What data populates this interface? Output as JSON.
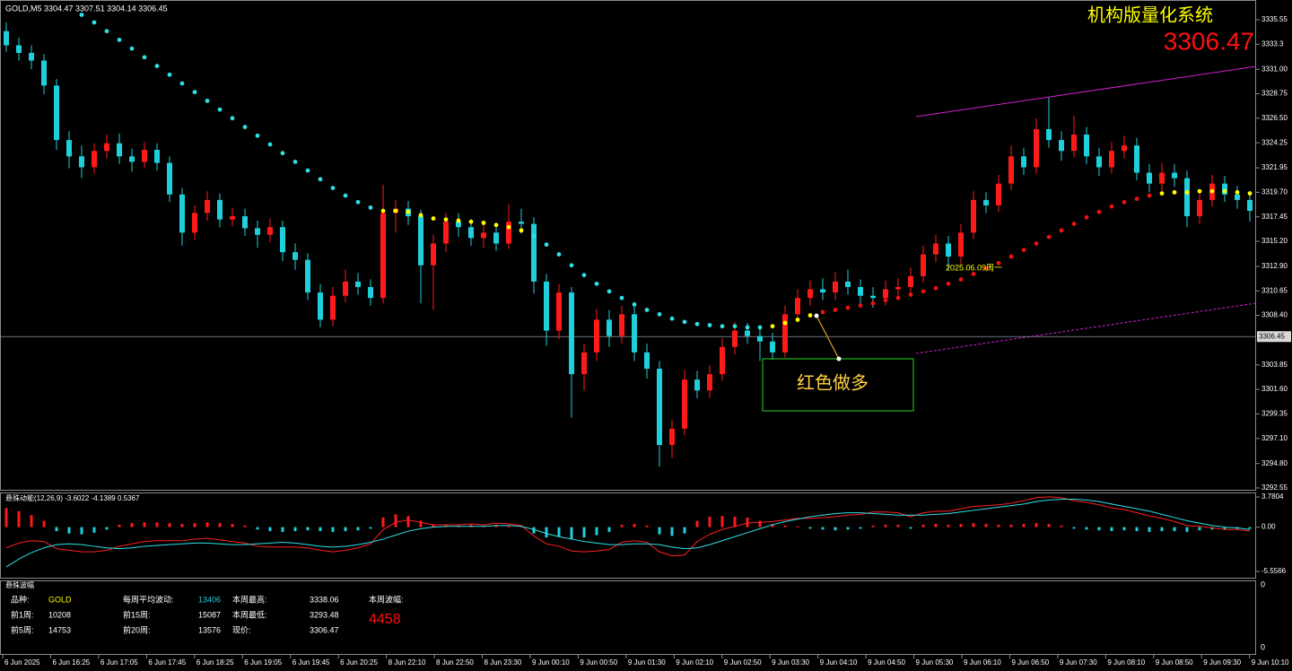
{
  "header": {
    "symbol_info": "GOLD,M5  3304.47 3307.51 3304.14 3306.45",
    "system_name": "机构版量化系统",
    "price": "3306.47"
  },
  "chart_data": {
    "type": "candlestick",
    "open": [
      3334.5,
      3333.2,
      3332.5,
      3331.8,
      3329.5,
      3324.5,
      3323.0,
      3322.0,
      3323.5,
      3324.2,
      3323.0,
      3322.5,
      3323.6,
      3322.4,
      3319.5,
      3316.0,
      3317.8,
      3319.0,
      3317.2,
      3317.5,
      3316.4,
      3315.8,
      3316.5,
      3314.2,
      3313.5,
      3310.5,
      3308.0,
      3310.2,
      3311.5,
      3311.0,
      3310.0,
      3317.8,
      3318.2,
      3317.5,
      3313.0,
      3315.0,
      3317.0,
      3316.5,
      3315.5,
      3316.0,
      3315.0,
      3317.0,
      3316.8,
      3311.5,
      3307.0,
      3310.5,
      3303.0,
      3305.0,
      3308.0,
      3306.5,
      3308.5,
      3305.0,
      3303.5,
      3296.5,
      3298.0,
      3302.5,
      3301.5,
      3303.0,
      3305.5,
      3307.0,
      3306.5,
      3306.0,
      3305.0,
      3308.5,
      3310.0,
      3310.8,
      3310.5,
      3311.5,
      3311.0,
      3310.2,
      3310.0,
      3310.8,
      3311.0,
      3312.0,
      3314.0,
      3315.0,
      3313.8,
      3316.0,
      3319.0,
      3318.5,
      3320.5,
      3323.0,
      3322.0,
      3325.5,
      3324.5,
      3323.5,
      3325.0,
      3323.0,
      3322.0,
      3323.5,
      3324.0,
      3321.5,
      3320.5,
      3321.5,
      3321.0,
      3317.5,
      3319.0,
      3320.5,
      3319.5,
      3319.0
    ],
    "high": [
      3335.3,
      3333.9,
      3333.2,
      3332.4,
      3330.1,
      3325.3,
      3324.0,
      3324.2,
      3325.0,
      3325.1,
      3323.7,
      3324.3,
      3324.2,
      3323.0,
      3320.1,
      3318.5,
      3319.8,
      3319.6,
      3318.3,
      3318.2,
      3317.1,
      3317.3,
      3317.1,
      3315.0,
      3314.1,
      3311.3,
      3311.0,
      3312.6,
      3312.3,
      3311.7,
      3320.4,
      3319.0,
      3318.9,
      3318.1,
      3315.8,
      3317.8,
      3317.8,
      3317.2,
      3316.8,
      3316.9,
      3318.6,
      3318.2,
      3317.4,
      3312.2,
      3311.3,
      3311.0,
      3305.8,
      3309.0,
      3308.9,
      3309.3,
      3309.2,
      3305.8,
      3304.2,
      3298.8,
      3303.4,
      3303.3,
      3303.8,
      3306.3,
      3307.8,
      3307.7,
      3307.2,
      3306.8,
      3309.3,
      3310.8,
      3311.6,
      3311.8,
      3312.4,
      3312.6,
      3311.7,
      3311.0,
      3311.6,
      3311.8,
      3312.8,
      3314.8,
      3315.8,
      3315.7,
      3316.8,
      3319.8,
      3319.7,
      3321.3,
      3324.0,
      3323.8,
      3326.5,
      3328.4,
      3325.3,
      3326.7,
      3325.7,
      3323.8,
      3324.3,
      3324.9,
      3324.7,
      3322.3,
      3322.4,
      3322.3,
      3321.7,
      3319.8,
      3321.3,
      3321.2,
      3320.3,
      3319.8
    ],
    "low": [
      3332.6,
      3331.8,
      3331.0,
      3328.7,
      3323.6,
      3321.9,
      3321.0,
      3321.4,
      3322.8,
      3322.3,
      3321.6,
      3321.9,
      3321.7,
      3318.8,
      3314.8,
      3315.3,
      3317.1,
      3316.5,
      3316.6,
      3315.7,
      3314.6,
      3315.1,
      3313.4,
      3312.6,
      3309.8,
      3307.3,
      3307.4,
      3309.6,
      3310.3,
      3309.3,
      3309.5,
      3316.0,
      3316.7,
      3309.5,
      3308.9,
      3314.2,
      3315.6,
      3314.8,
      3314.6,
      3314.3,
      3314.5,
      3315.9,
      3310.4,
      3305.6,
      3306.2,
      3299.0,
      3301.5,
      3304.2,
      3305.5,
      3305.8,
      3304.2,
      3302.6,
      3294.5,
      3295.3,
      3297.4,
      3300.8,
      3300.8,
      3302.4,
      3304.8,
      3305.8,
      3304.2,
      3304.3,
      3304.5,
      3307.9,
      3309.3,
      3309.8,
      3309.8,
      3310.3,
      3309.5,
      3309.1,
      3309.3,
      3310.1,
      3310.3,
      3311.4,
      3313.3,
      3312.6,
      3313.1,
      3315.4,
      3317.8,
      3317.9,
      3319.9,
      3321.3,
      3321.4,
      3323.8,
      3322.6,
      3322.9,
      3322.3,
      3321.2,
      3321.4,
      3322.8,
      3320.8,
      3319.7,
      3319.8,
      3320.2,
      3316.5,
      3316.8,
      3318.4,
      3318.8,
      3318.2,
      3317.0
    ],
    "close": [
      3333.2,
      3332.5,
      3331.8,
      3329.5,
      3324.5,
      3323.0,
      3322.0,
      3323.5,
      3324.2,
      3323.0,
      3322.5,
      3323.6,
      3322.4,
      3319.5,
      3316.0,
      3317.8,
      3319.0,
      3317.2,
      3317.5,
      3316.4,
      3315.8,
      3316.5,
      3314.2,
      3313.5,
      3310.5,
      3308.0,
      3310.2,
      3311.5,
      3311.0,
      3310.0,
      3317.8,
      3318.2,
      3317.5,
      3313.0,
      3315.0,
      3317.0,
      3316.5,
      3315.5,
      3316.0,
      3315.0,
      3317.0,
      3316.8,
      3311.5,
      3307.0,
      3310.5,
      3303.0,
      3305.0,
      3308.0,
      3306.5,
      3308.5,
      3305.0,
      3303.5,
      3296.5,
      3298.0,
      3302.5,
      3301.5,
      3303.0,
      3305.5,
      3307.0,
      3306.5,
      3306.0,
      3305.0,
      3308.5,
      3310.0,
      3310.8,
      3310.5,
      3311.5,
      3311.0,
      3310.2,
      3310.0,
      3310.8,
      3311.0,
      3312.0,
      3314.0,
      3315.0,
      3313.8,
      3316.0,
      3319.0,
      3318.5,
      3320.5,
      3323.0,
      3322.0,
      3325.5,
      3324.5,
      3323.5,
      3325.0,
      3323.0,
      3322.0,
      3323.5,
      3324.0,
      3321.5,
      3320.5,
      3321.5,
      3321.0,
      3317.5,
      3319.0,
      3320.5,
      3319.5,
      3319.0,
      3318.0
    ],
    "up_color": "#ff1a1a",
    "down_color": "#1fd0dc",
    "ma_series": [
      {
        "color": "#2ee0e6",
        "values": [
          null,
          null,
          null,
          null,
          null,
          null,
          3336.0,
          3335.3,
          3334.5,
          3333.7,
          3332.9,
          3332.1,
          3331.3,
          3330.5,
          3329.7,
          3328.9,
          3328.1,
          3327.3,
          3326.5,
          3325.7,
          3324.9,
          3324.1,
          3323.3,
          3322.5,
          3321.7,
          3320.9,
          3320.1,
          3319.4,
          3318.8,
          3318.3,
          null,
          null,
          null,
          null,
          null,
          null,
          null,
          null,
          null,
          null,
          null,
          null,
          3315.7,
          3314.9,
          3314.0,
          3313.0,
          3312.1,
          3311.3,
          3310.6,
          3310.0,
          3309.4,
          3308.9,
          3308.5,
          3308.1,
          3307.8,
          3307.6,
          3307.5,
          3307.4,
          3307.4,
          3307.3,
          3307.3,
          null,
          null,
          null,
          null,
          null,
          null,
          null,
          null,
          null,
          null,
          null,
          null,
          null,
          null,
          null,
          null,
          null,
          null,
          null,
          null,
          null,
          null,
          null,
          null,
          null,
          null,
          null,
          null,
          null,
          null,
          null,
          null,
          null,
          null,
          null,
          null,
          null,
          null,
          null
        ]
      },
      {
        "color": "#ffff00",
        "values": [
          null,
          null,
          null,
          null,
          null,
          null,
          null,
          null,
          null,
          null,
          null,
          null,
          null,
          null,
          null,
          null,
          null,
          null,
          null,
          null,
          null,
          null,
          null,
          null,
          null,
          null,
          null,
          null,
          null,
          null,
          3318.0,
          3318.0,
          3317.9,
          3317.6,
          3317.3,
          3317.2,
          3317.1,
          3317.0,
          3316.9,
          3316.7,
          3316.5,
          3316.2,
          null,
          null,
          null,
          null,
          null,
          null,
          null,
          null,
          null,
          null,
          null,
          null,
          null,
          null,
          null,
          null,
          null,
          null,
          null,
          3307.4,
          3307.7,
          3308.0,
          3308.4,
          null,
          null,
          null,
          null,
          null,
          null,
          null,
          null,
          null,
          null,
          null,
          null,
          null,
          null,
          null,
          null,
          null,
          null,
          null,
          null,
          null,
          null,
          null,
          null,
          null,
          null,
          null,
          3319.6,
          3319.7,
          3319.7,
          3319.8,
          3319.8,
          3319.8,
          3319.7,
          3319.6
        ]
      },
      {
        "color": "#ee1111",
        "values": [
          null,
          null,
          null,
          null,
          null,
          null,
          null,
          null,
          null,
          null,
          null,
          null,
          null,
          null,
          null,
          null,
          null,
          null,
          null,
          null,
          null,
          null,
          null,
          null,
          null,
          null,
          null,
          null,
          null,
          null,
          null,
          null,
          null,
          null,
          null,
          null,
          null,
          null,
          null,
          null,
          null,
          null,
          null,
          null,
          null,
          null,
          null,
          null,
          null,
          null,
          null,
          null,
          null,
          null,
          null,
          null,
          null,
          null,
          null,
          null,
          null,
          null,
          null,
          null,
          null,
          3308.7,
          3308.9,
          3309.1,
          3309.3,
          3309.5,
          3309.8,
          3310.0,
          3310.3,
          3310.6,
          3310.9,
          3311.3,
          3311.7,
          3312.2,
          3312.7,
          3313.2,
          3313.8,
          3314.4,
          3315.0,
          3315.6,
          3316.2,
          3316.8,
          3317.4,
          3317.9,
          3318.4,
          3318.8,
          3319.1,
          3319.4,
          null,
          null,
          null,
          null,
          null,
          null,
          null,
          null
        ]
      }
    ],
    "ylim": [
      3292.3,
      3337.36
    ],
    "yticks": [
      3335.55,
      3333.3,
      {
        "value": 3331,
        "label": "3331.00"
      },
      3328.75,
      {
        "value": 3326.5,
        "label": "3326.50"
      },
      3324.25,
      3321.95,
      {
        "value": 3319.7,
        "label": "3319.70"
      },
      3317.45,
      {
        "value": 3315.2,
        "label": "3315.20"
      },
      {
        "value": 3312.9,
        "label": "3312.90"
      },
      3310.65,
      {
        "value": 3308.4,
        "label": "3308.40"
      },
      3303.85,
      {
        "value": 3301.6,
        "label": "3301.60"
      },
      3299.35,
      {
        "value": 3297.1,
        "label": "3297.10"
      },
      {
        "value": 3294.8,
        "label": "3294.80"
      },
      3292.55
    ],
    "last_price": 3306.45,
    "time_labels": [
      "6 Jun 2025",
      "6 Jun 16:25",
      "6 Jun 17:05",
      "6 Jun 17:45",
      "6 Jun 18:25",
      "6 Jun 19:05",
      "6 Jun 19:45",
      "6 Jun 20:25",
      "8 Jun 22:10",
      "8 Jun 22:50",
      "8 Jun 23:30",
      "9 Jun 00:10",
      "9 Jun 00:50",
      "9 Jun 01:30",
      "9 Jun 02:10",
      "9 Jun 02:50",
      "9 Jun 03:30",
      "9 Jun 04:10",
      "9 Jun 04:50",
      "9 Jun 05:30",
      "9 Jun 06:10",
      "9 Jun 06:50",
      "9 Jun 07:30",
      "9 Jun 08:10",
      "9 Jun 08:50",
      "9 Jun 09:30",
      "9 Jun 10:10"
    ],
    "date_annotation": "2025.06.09周一",
    "signal_annotation": "红色做多"
  },
  "oscillator": {
    "title": "悬殊动能(12,26,9) -3.6022 -4.1389 0.5367",
    "histogram": [
      2.4,
      2.0,
      1.5,
      0.8,
      -0.5,
      -0.8,
      -0.9,
      -0.7,
      -0.3,
      0.3,
      0.5,
      0.6,
      0.6,
      0.5,
      0.4,
      0.5,
      0.6,
      0.5,
      0.4,
      0.2,
      -0.3,
      -0.5,
      -0.6,
      -0.5,
      -0.4,
      -0.5,
      -0.6,
      -0.5,
      -0.4,
      -0.2,
      1.2,
      1.6,
      1.4,
      0.8,
      0.3,
      0.2,
      0.2,
      0.3,
      0.2,
      0.3,
      0.2,
      0.1,
      -0.8,
      -1.3,
      -1.2,
      -1.5,
      -1.3,
      -1.0,
      -0.6,
      0.3,
      0.4,
      0.2,
      -0.9,
      -1.1,
      -0.8,
      0.8,
      1.3,
      1.4,
      1.3,
      1.2,
      0.8,
      0.4,
      0.2,
      0.1,
      -0.2,
      -0.3,
      -0.4,
      -0.3,
      -0.2,
      0.2,
      0.3,
      0.3,
      -0.2,
      0.3,
      0.4,
      0.3,
      0.4,
      0.5,
      0.4,
      0.3,
      0.3,
      0.4,
      0.5,
      0.4,
      0.2,
      -0.2,
      -0.3,
      -0.4,
      -0.5,
      -0.4,
      -0.5,
      -0.6,
      -0.5,
      -0.5,
      -0.6,
      -0.4,
      -0.3,
      -0.3,
      -0.2,
      -0.2
    ],
    "up_color": "#ff1a1a",
    "down_color": "#1fd0dc",
    "lines": [
      {
        "color": "#ff2020",
        "values": [
          -2.6,
          -2.0,
          -1.7,
          -1.8,
          -2.7,
          -2.9,
          -3.1,
          -3.1,
          -2.9,
          -2.4,
          -2.1,
          -1.8,
          -1.7,
          -1.7,
          -1.7,
          -1.5,
          -1.4,
          -1.6,
          -1.8,
          -2.0,
          -2.4,
          -2.5,
          -2.5,
          -2.5,
          -2.6,
          -2.9,
          -3.1,
          -2.9,
          -2.6,
          -2.1,
          -0.3,
          0.6,
          0.9,
          0.6,
          0.3,
          0.3,
          0.3,
          0.4,
          0.3,
          0.5,
          0.4,
          0.2,
          -1.1,
          -2.1,
          -2.4,
          -3.0,
          -3.1,
          -3.0,
          -2.8,
          -1.9,
          -1.7,
          -1.9,
          -3.1,
          -3.6,
          -3.5,
          -1.8,
          -0.9,
          -0.3,
          0.1,
          0.5,
          0.6,
          0.7,
          0.9,
          1.1,
          1.1,
          1.2,
          1.3,
          1.5,
          1.6,
          1.9,
          1.9,
          1.8,
          1.3,
          1.8,
          2.0,
          2.0,
          2.3,
          2.6,
          2.7,
          2.8,
          3.0,
          3.3,
          3.7,
          3.8,
          3.7,
          3.3,
          3.1,
          2.8,
          2.4,
          2.2,
          1.8,
          1.4,
          1.1,
          0.7,
          0.2,
          0.1,
          -0.1,
          -0.3,
          -0.3,
          -0.5
        ]
      },
      {
        "color": "#2ee0e6",
        "values": [
          -5.0,
          -4.0,
          -3.2,
          -2.6,
          -2.2,
          -2.1,
          -2.2,
          -2.4,
          -2.6,
          -2.7,
          -2.6,
          -2.4,
          -2.3,
          -2.2,
          -2.1,
          -2.0,
          -2.0,
          -2.1,
          -2.2,
          -2.2,
          -2.1,
          -2.0,
          -1.9,
          -2.0,
          -2.2,
          -2.4,
          -2.5,
          -2.4,
          -2.2,
          -1.9,
          -1.5,
          -1.0,
          -0.5,
          -0.2,
          0.0,
          0.1,
          0.1,
          0.1,
          0.1,
          0.2,
          0.2,
          0.1,
          -0.3,
          -0.8,
          -1.2,
          -1.5,
          -1.8,
          -2.0,
          -2.2,
          -2.2,
          -2.1,
          -2.1,
          -2.2,
          -2.5,
          -2.7,
          -2.6,
          -2.2,
          -1.7,
          -1.2,
          -0.7,
          -0.2,
          0.3,
          0.7,
          1.0,
          1.3,
          1.5,
          1.7,
          1.8,
          1.8,
          1.7,
          1.6,
          1.5,
          1.5,
          1.5,
          1.6,
          1.7,
          1.9,
          2.1,
          2.3,
          2.5,
          2.7,
          2.9,
          3.2,
          3.4,
          3.5,
          3.5,
          3.4,
          3.2,
          2.9,
          2.6,
          2.3,
          2.0,
          1.6,
          1.2,
          0.8,
          0.5,
          0.2,
          0.0,
          -0.1,
          -0.3
        ]
      }
    ],
    "ylim": [
      -5.5566,
      3.7804
    ],
    "yticks": [
      3.7804,
      {
        "value": 0,
        "label": "0.00"
      },
      -5.5566
    ]
  },
  "info_panel": {
    "title": "悬殊波幅",
    "scale_top": "0",
    "scale_bottom": "0",
    "rows": [
      [
        {
          "label": "品种:",
          "value": "GOLD"
        },
        {
          "label": "每周平均波动:",
          "value": "13406"
        },
        {
          "label": "本周最高:",
          "value": "3338.06"
        },
        {
          "label": "本周波幅:",
          "value": ""
        }
      ],
      [
        {
          "label": "前1周:",
          "value": "10208"
        },
        {
          "label": "前15周:",
          "value": "15087"
        },
        {
          "label": "本周最低:",
          "value": "3293.48"
        }
      ],
      [
        {
          "label": "前5周:",
          "value": "14753"
        },
        {
          "label": "前20周:",
          "value": "13576"
        },
        {
          "label": "现价:",
          "value": "3306.47"
        }
      ]
    ],
    "range_value": "4458"
  }
}
